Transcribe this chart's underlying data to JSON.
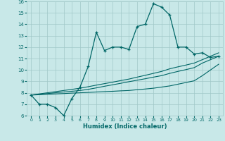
{
  "xlabel": "Humidex (Indice chaleur)",
  "bg_color": "#c8e8e8",
  "line_color": "#006666",
  "grid_color": "#a0c8c8",
  "x_main": [
    0,
    1,
    2,
    3,
    4,
    5,
    6,
    7,
    8,
    9,
    10,
    11,
    12,
    13,
    14,
    15,
    16,
    17,
    18,
    19,
    20,
    21,
    22,
    23
  ],
  "y_main": [
    7.8,
    7.0,
    7.0,
    6.7,
    6.0,
    7.5,
    8.5,
    10.3,
    13.3,
    11.7,
    12.0,
    12.0,
    11.8,
    13.8,
    14.0,
    15.8,
    15.5,
    14.8,
    12.0,
    12.0,
    11.4,
    11.5,
    11.1,
    11.2
  ],
  "y_line1": [
    7.8,
    7.83,
    7.87,
    7.9,
    7.93,
    7.97,
    8.0,
    8.03,
    8.07,
    8.1,
    8.13,
    8.17,
    8.2,
    8.27,
    8.33,
    8.4,
    8.5,
    8.6,
    8.75,
    8.9,
    9.05,
    9.5,
    10.0,
    10.5
  ],
  "y_line2": [
    7.8,
    7.87,
    7.93,
    8.0,
    8.07,
    8.13,
    8.2,
    8.3,
    8.43,
    8.57,
    8.7,
    8.83,
    8.97,
    9.1,
    9.23,
    9.37,
    9.5,
    9.7,
    9.87,
    10.03,
    10.2,
    10.6,
    10.9,
    11.2
  ],
  "y_line3": [
    7.8,
    7.9,
    8.0,
    8.1,
    8.2,
    8.3,
    8.4,
    8.53,
    8.67,
    8.8,
    8.93,
    9.07,
    9.2,
    9.37,
    9.53,
    9.7,
    9.87,
    10.1,
    10.27,
    10.43,
    10.6,
    10.9,
    11.2,
    11.5
  ],
  "xlim": [
    -0.5,
    23.5
  ],
  "ylim": [
    6,
    16
  ],
  "yticks": [
    6,
    7,
    8,
    9,
    10,
    11,
    12,
    13,
    14,
    15,
    16
  ],
  "xticks": [
    0,
    1,
    2,
    3,
    4,
    5,
    6,
    7,
    8,
    9,
    10,
    11,
    12,
    13,
    14,
    15,
    16,
    17,
    18,
    19,
    20,
    21,
    22,
    23
  ]
}
